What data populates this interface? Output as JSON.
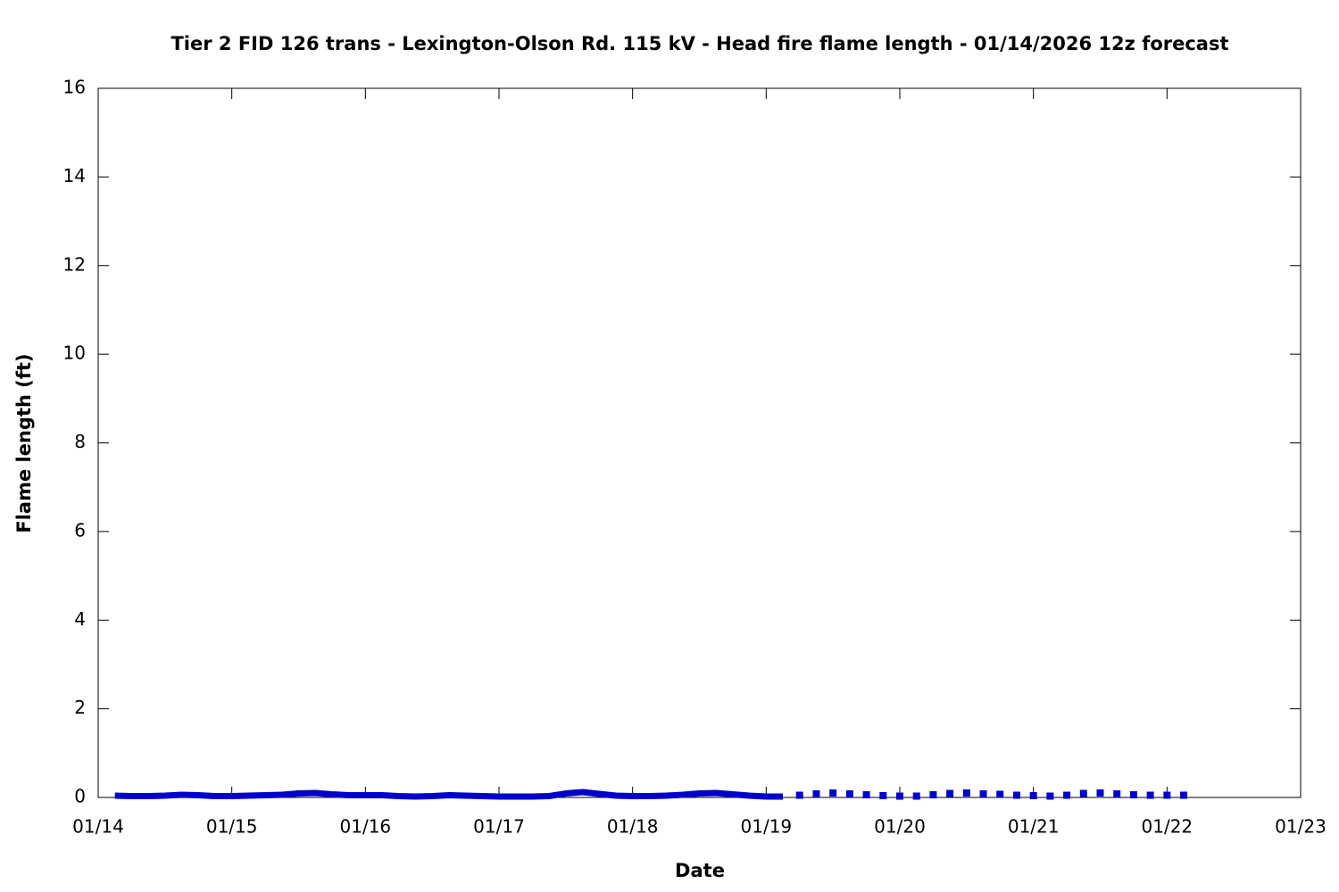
{
  "chart_data": {
    "type": "line",
    "title": "Tier 2 FID 126 trans - Lexington-Olson Rd. 115 kV - Head fire flame length - 01/14/2026 12z forecast",
    "x_label": "Date",
    "y_label": "Flame length (ft)",
    "xlim": [
      0,
      9
    ],
    "xticks": [
      {
        "value": 0,
        "label": "01/14"
      },
      {
        "value": 1,
        "label": "01/15"
      },
      {
        "value": 2,
        "label": "01/16"
      },
      {
        "value": 3,
        "label": "01/17"
      },
      {
        "value": 4,
        "label": "01/18"
      },
      {
        "value": 5,
        "label": "01/19"
      },
      {
        "value": 6,
        "label": "01/20"
      },
      {
        "value": 7,
        "label": "01/21"
      },
      {
        "value": 8,
        "label": "01/22"
      },
      {
        "value": 9,
        "label": "01/23"
      }
    ],
    "ylim": [
      0,
      16
    ],
    "yticks": [
      0,
      2,
      4,
      6,
      8,
      10,
      12,
      14,
      16
    ],
    "series": [
      {
        "style": "line",
        "color": "#0000cc",
        "x": [
          0.125,
          0.25,
          0.375,
          0.5,
          0.625,
          0.75,
          0.875,
          1.0,
          1.125,
          1.25,
          1.375,
          1.5,
          1.625,
          1.75,
          1.875,
          2.0,
          2.125,
          2.25,
          2.375,
          2.5,
          2.625,
          2.75,
          2.875,
          3.0,
          3.125,
          3.25,
          3.375,
          3.5,
          3.625,
          3.75,
          3.875,
          4.0,
          4.125,
          4.25,
          4.375,
          4.5,
          4.625,
          4.75,
          4.875,
          5.0,
          5.125
        ],
        "values": [
          0.04,
          0.03,
          0.03,
          0.04,
          0.06,
          0.05,
          0.03,
          0.03,
          0.04,
          0.05,
          0.06,
          0.09,
          0.1,
          0.07,
          0.05,
          0.05,
          0.05,
          0.03,
          0.02,
          0.03,
          0.05,
          0.04,
          0.03,
          0.02,
          0.02,
          0.02,
          0.03,
          0.09,
          0.12,
          0.08,
          0.04,
          0.03,
          0.03,
          0.04,
          0.06,
          0.09,
          0.1,
          0.07,
          0.04,
          0.02,
          0.02
        ]
      },
      {
        "style": "points",
        "color": "#0000cc",
        "x": [
          5.25,
          5.375,
          5.5,
          5.625,
          5.75,
          5.875,
          6.0,
          6.125,
          6.25,
          6.375,
          6.5,
          6.625,
          6.75,
          6.875,
          7.0,
          7.125,
          7.25,
          7.375,
          7.5,
          7.625,
          7.75,
          7.875,
          8.0,
          8.125
        ],
        "values": [
          0.05,
          0.08,
          0.1,
          0.08,
          0.06,
          0.04,
          0.03,
          0.03,
          0.06,
          0.09,
          0.1,
          0.08,
          0.07,
          0.05,
          0.04,
          0.03,
          0.05,
          0.09,
          0.1,
          0.08,
          0.06,
          0.05,
          0.05,
          0.05
        ]
      }
    ]
  }
}
